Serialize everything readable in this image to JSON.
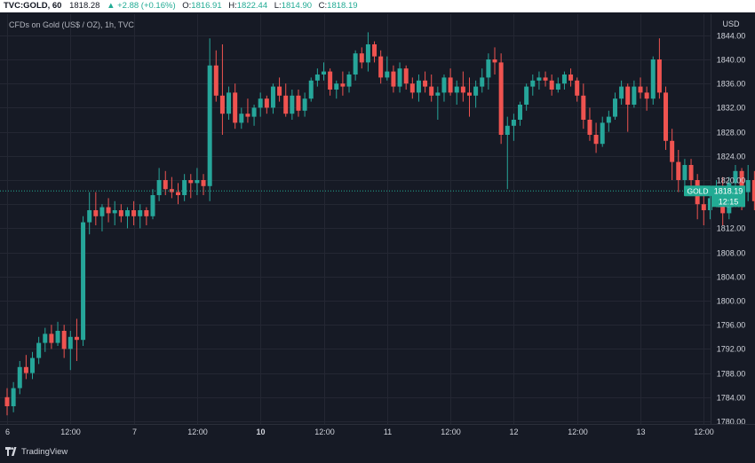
{
  "header": {
    "symbol": "TVC:GOLD, 60",
    "last": "1818.28",
    "change": "▲ +2.88 (+0.16%)",
    "o_label": "O:",
    "o_value": "1816.91",
    "h_label": "H:",
    "h_value": "1822.44",
    "l_label": "L:",
    "l_value": "1814.90",
    "c_label": "C:",
    "c_value": "1818.19"
  },
  "footer": {
    "brand": "TradingView"
  },
  "colors": {
    "background": "#161a25",
    "grid": "#242733",
    "up": "#26a69a",
    "down": "#ef5350",
    "text": "#d1d4dc",
    "price_tag": "#22ab94"
  },
  "chart_data": {
    "type": "candlestick",
    "title": "CFDs on Gold (US$ / OZ), 1h, TVC",
    "currency": "USD",
    "timeframe": "1h",
    "ylim": [
      1780,
      1846
    ],
    "y_ticks": [
      1780,
      1784,
      1788,
      1792,
      1796,
      1800,
      1804,
      1808,
      1812,
      1816,
      1820,
      1824,
      1828,
      1832,
      1836,
      1840,
      1844
    ],
    "x_ticks": [
      {
        "bar": 0,
        "label": "6",
        "bold": false
      },
      {
        "bar": 10,
        "label": "12:00",
        "bold": false
      },
      {
        "bar": 20,
        "label": "7",
        "bold": false
      },
      {
        "bar": 30,
        "label": "12:00",
        "bold": false
      },
      {
        "bar": 40,
        "label": "10",
        "bold": true
      },
      {
        "bar": 50,
        "label": "12:00",
        "bold": false
      },
      {
        "bar": 60,
        "label": "11",
        "bold": false
      },
      {
        "bar": 70,
        "label": "12:00",
        "bold": false
      },
      {
        "bar": 80,
        "label": "12",
        "bold": false
      },
      {
        "bar": 90,
        "label": "12:00",
        "bold": false
      },
      {
        "bar": 100,
        "label": "13",
        "bold": false
      },
      {
        "bar": 110,
        "label": "12:00",
        "bold": false
      }
    ],
    "last_price": {
      "label": "GOLD",
      "value": 1818.19,
      "value_label": "1818.19",
      "countdown": "12:15"
    },
    "ohlc": [
      [
        1784.0,
        1785.5,
        1781.0,
        1782.5
      ],
      [
        1782.5,
        1786.5,
        1781.5,
        1785.5
      ],
      [
        1785.5,
        1790.0,
        1784.5,
        1789.0
      ],
      [
        1789.0,
        1791.0,
        1787.0,
        1788.0
      ],
      [
        1788.0,
        1791.5,
        1787.0,
        1790.5
      ],
      [
        1790.5,
        1794.0,
        1789.5,
        1793.0
      ],
      [
        1793.0,
        1795.5,
        1791.5,
        1794.5
      ],
      [
        1794.5,
        1796.0,
        1792.0,
        1793.0
      ],
      [
        1793.0,
        1796.5,
        1792.5,
        1795.0
      ],
      [
        1795.0,
        1796.0,
        1790.5,
        1792.0
      ],
      [
        1792.0,
        1795.0,
        1788.5,
        1794.0
      ],
      [
        1794.0,
        1797.0,
        1790.0,
        1793.5
      ],
      [
        1793.5,
        1814.0,
        1792.5,
        1813.0
      ],
      [
        1813.0,
        1818.0,
        1811.0,
        1815.0
      ],
      [
        1815.0,
        1818.0,
        1812.5,
        1814.0
      ],
      [
        1814.0,
        1816.0,
        1811.5,
        1815.5
      ],
      [
        1815.5,
        1817.0,
        1813.0,
        1814.5
      ],
      [
        1814.5,
        1816.5,
        1812.5,
        1815.0
      ],
      [
        1815.0,
        1816.0,
        1813.0,
        1814.0
      ],
      [
        1814.0,
        1815.5,
        1812.0,
        1815.0
      ],
      [
        1815.0,
        1816.5,
        1812.5,
        1814.0
      ],
      [
        1814.0,
        1816.0,
        1812.0,
        1815.0
      ],
      [
        1815.0,
        1815.5,
        1812.5,
        1814.0
      ],
      [
        1814.0,
        1818.5,
        1813.5,
        1817.5
      ],
      [
        1817.5,
        1822.0,
        1816.5,
        1820.0
      ],
      [
        1820.0,
        1821.5,
        1817.5,
        1818.5
      ],
      [
        1818.5,
        1820.5,
        1817.0,
        1818.0
      ],
      [
        1818.0,
        1819.5,
        1816.0,
        1817.5
      ],
      [
        1817.5,
        1821.0,
        1816.5,
        1820.0
      ],
      [
        1820.0,
        1821.0,
        1817.0,
        1819.5
      ],
      [
        1819.5,
        1822.0,
        1817.5,
        1820.0
      ],
      [
        1820.0,
        1821.0,
        1817.5,
        1819.0
      ],
      [
        1819.0,
        1843.5,
        1816.5,
        1839.0
      ],
      [
        1839.0,
        1841.5,
        1833.0,
        1834.0
      ],
      [
        1834.0,
        1842.5,
        1827.5,
        1831.0
      ],
      [
        1831.0,
        1835.5,
        1830.0,
        1834.5
      ],
      [
        1834.5,
        1836.0,
        1828.5,
        1829.5
      ],
      [
        1829.5,
        1832.0,
        1828.5,
        1831.0
      ],
      [
        1831.0,
        1833.5,
        1829.5,
        1830.5
      ],
      [
        1830.5,
        1832.5,
        1829.0,
        1832.0
      ],
      [
        1832.0,
        1834.5,
        1830.5,
        1833.5
      ],
      [
        1833.5,
        1834.0,
        1831.0,
        1832.0
      ],
      [
        1832.0,
        1836.0,
        1831.0,
        1835.5
      ],
      [
        1835.5,
        1837.0,
        1833.0,
        1834.0
      ],
      [
        1834.0,
        1836.0,
        1830.5,
        1831.0
      ],
      [
        1831.0,
        1835.0,
        1830.0,
        1834.0
      ],
      [
        1834.0,
        1835.0,
        1830.5,
        1831.5
      ],
      [
        1831.5,
        1834.5,
        1830.5,
        1833.5
      ],
      [
        1833.5,
        1837.0,
        1833.0,
        1836.5
      ],
      [
        1836.5,
        1838.5,
        1835.5,
        1837.5
      ],
      [
        1837.5,
        1839.5,
        1836.5,
        1838.0
      ],
      [
        1838.0,
        1838.5,
        1834.0,
        1835.0
      ],
      [
        1835.0,
        1836.5,
        1833.5,
        1836.0
      ],
      [
        1836.0,
        1838.0,
        1834.0,
        1835.5
      ],
      [
        1835.5,
        1838.0,
        1834.5,
        1837.5
      ],
      [
        1837.5,
        1841.5,
        1836.5,
        1841.0
      ],
      [
        1841.0,
        1842.0,
        1838.5,
        1839.5
      ],
      [
        1839.5,
        1844.5,
        1838.0,
        1842.5
      ],
      [
        1842.5,
        1843.0,
        1839.5,
        1840.5
      ],
      [
        1840.5,
        1841.5,
        1836.0,
        1837.0
      ],
      [
        1837.0,
        1840.5,
        1836.5,
        1838.0
      ],
      [
        1838.0,
        1839.0,
        1834.5,
        1835.5
      ],
      [
        1835.5,
        1839.5,
        1834.5,
        1838.5
      ],
      [
        1838.5,
        1839.0,
        1835.0,
        1836.0
      ],
      [
        1836.0,
        1837.0,
        1833.5,
        1834.5
      ],
      [
        1834.5,
        1837.5,
        1833.0,
        1836.5
      ],
      [
        1836.5,
        1838.0,
        1834.5,
        1835.5
      ],
      [
        1835.5,
        1837.5,
        1833.0,
        1834.0
      ],
      [
        1834.0,
        1835.5,
        1830.0,
        1834.5
      ],
      [
        1834.5,
        1837.5,
        1833.0,
        1837.0
      ],
      [
        1837.0,
        1838.5,
        1834.0,
        1834.5
      ],
      [
        1834.5,
        1836.5,
        1832.5,
        1835.5
      ],
      [
        1835.5,
        1838.0,
        1833.0,
        1834.5
      ],
      [
        1834.5,
        1837.0,
        1830.5,
        1834.0
      ],
      [
        1834.0,
        1836.5,
        1832.0,
        1835.5
      ],
      [
        1835.5,
        1838.5,
        1834.5,
        1837.0
      ],
      [
        1837.0,
        1841.0,
        1835.0,
        1840.0
      ],
      [
        1840.0,
        1842.0,
        1837.5,
        1839.5
      ],
      [
        1839.5,
        1841.0,
        1826.0,
        1827.5
      ],
      [
        1827.5,
        1830.5,
        1818.5,
        1829.0
      ],
      [
        1829.0,
        1831.0,
        1826.5,
        1830.0
      ],
      [
        1830.0,
        1833.0,
        1829.0,
        1832.5
      ],
      [
        1832.5,
        1836.0,
        1831.5,
        1835.5
      ],
      [
        1835.5,
        1837.5,
        1834.0,
        1836.5
      ],
      [
        1836.5,
        1838.0,
        1835.0,
        1837.0
      ],
      [
        1837.0,
        1838.0,
        1835.5,
        1836.5
      ],
      [
        1836.5,
        1837.5,
        1834.0,
        1835.0
      ],
      [
        1835.0,
        1837.0,
        1834.5,
        1836.0
      ],
      [
        1836.0,
        1838.0,
        1835.0,
        1837.5
      ],
      [
        1837.5,
        1838.5,
        1835.5,
        1836.5
      ],
      [
        1836.5,
        1837.0,
        1833.0,
        1834.0
      ],
      [
        1834.0,
        1836.0,
        1828.5,
        1830.0
      ],
      [
        1830.0,
        1832.0,
        1826.5,
        1827.5
      ],
      [
        1827.5,
        1829.5,
        1824.5,
        1826.0
      ],
      [
        1826.0,
        1830.5,
        1825.5,
        1829.5
      ],
      [
        1829.5,
        1831.5,
        1828.0,
        1830.5
      ],
      [
        1830.5,
        1834.5,
        1830.0,
        1833.5
      ],
      [
        1833.5,
        1836.5,
        1832.5,
        1835.5
      ],
      [
        1835.5,
        1836.0,
        1828.0,
        1832.5
      ],
      [
        1832.5,
        1836.5,
        1832.0,
        1835.5
      ],
      [
        1835.5,
        1837.0,
        1833.5,
        1834.5
      ],
      [
        1834.5,
        1835.5,
        1831.5,
        1833.5
      ],
      [
        1833.5,
        1840.5,
        1832.5,
        1840.0
      ],
      [
        1840.0,
        1843.5,
        1833.5,
        1834.5
      ],
      [
        1834.5,
        1835.5,
        1825.0,
        1826.5
      ],
      [
        1826.5,
        1828.5,
        1820.0,
        1823.0
      ],
      [
        1823.0,
        1825.0,
        1818.0,
        1820.0
      ],
      [
        1820.0,
        1823.5,
        1818.5,
        1822.5
      ],
      [
        1822.5,
        1823.5,
        1819.0,
        1820.0
      ],
      [
        1820.0,
        1821.0,
        1813.5,
        1816.0
      ],
      [
        1816.0,
        1818.5,
        1812.5,
        1815.0
      ],
      [
        1815.0,
        1818.0,
        1813.5,
        1817.0
      ],
      [
        1817.0,
        1820.0,
        1815.5,
        1818.5
      ],
      [
        1818.5,
        1820.5,
        1812.5,
        1814.5
      ],
      [
        1814.5,
        1820.5,
        1813.5,
        1819.5
      ],
      [
        1819.5,
        1822.5,
        1818.5,
        1821.5
      ],
      [
        1821.5,
        1822.0,
        1815.0,
        1818.0
      ],
      [
        1818.0,
        1822.5,
        1816.5,
        1820.0
      ],
      [
        1820.0,
        1821.5,
        1815.0,
        1816.5
      ],
      [
        1816.5,
        1823.0,
        1816.0,
        1821.5
      ],
      [
        1821.5,
        1822.5,
        1815.5,
        1817.0
      ],
      [
        1817.0,
        1820.0,
        1815.5,
        1816.0
      ],
      [
        1816.0,
        1817.0,
        1811.5,
        1813.5
      ],
      [
        1813.5,
        1815.5,
        1810.0,
        1811.0
      ],
      [
        1811.0,
        1816.5,
        1808.5,
        1815.5
      ],
      [
        1815.5,
        1818.0,
        1813.5,
        1816.5
      ],
      [
        1816.5,
        1822.5,
        1814.9,
        1818.19
      ]
    ]
  }
}
